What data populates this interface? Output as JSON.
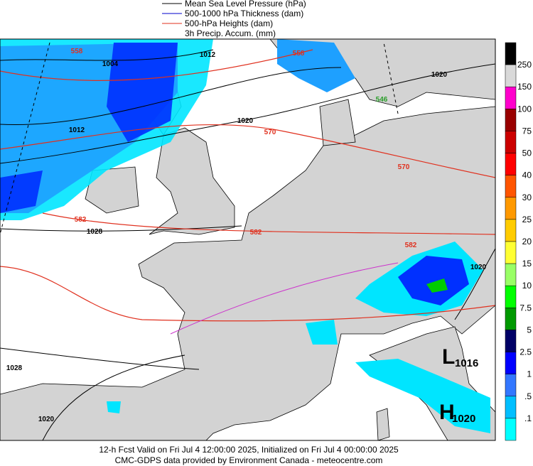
{
  "legend": [
    {
      "label": "Mean Sea Level Pressure (hPa)"
    },
    {
      "label": "500-1000 hPa Thickness (dam)"
    },
    {
      "label": "500-hPa Heights (dam)"
    },
    {
      "label": "3h Precip. Accum. (mm)"
    }
  ],
  "colorbar": {
    "labels": [
      "250",
      "150",
      "100",
      "75",
      "50",
      "40",
      "30",
      "25",
      "20",
      "15",
      "10",
      "7.5",
      "5",
      "2.5",
      "1",
      ".5",
      ".1"
    ]
  },
  "map": {
    "contour_labels": [
      "1004",
      "1012",
      "1012",
      "1020",
      "1020",
      "1028",
      "1028",
      "1020",
      "1020",
      "558",
      "558",
      "570",
      "570",
      "582",
      "582",
      "582",
      "546"
    ],
    "centers": [
      {
        "letter": "L",
        "value": "1016"
      },
      {
        "letter": "H",
        "value": "1020"
      }
    ]
  },
  "footer": [
    "12-h Fcst Valid on Fri Jul  4 12:00:00 2025, Initialized on Fri Jul  4 00:00:00 2025",
    "CMC-GDPS data provided by Environment Canada - meteocentre.com"
  ]
}
